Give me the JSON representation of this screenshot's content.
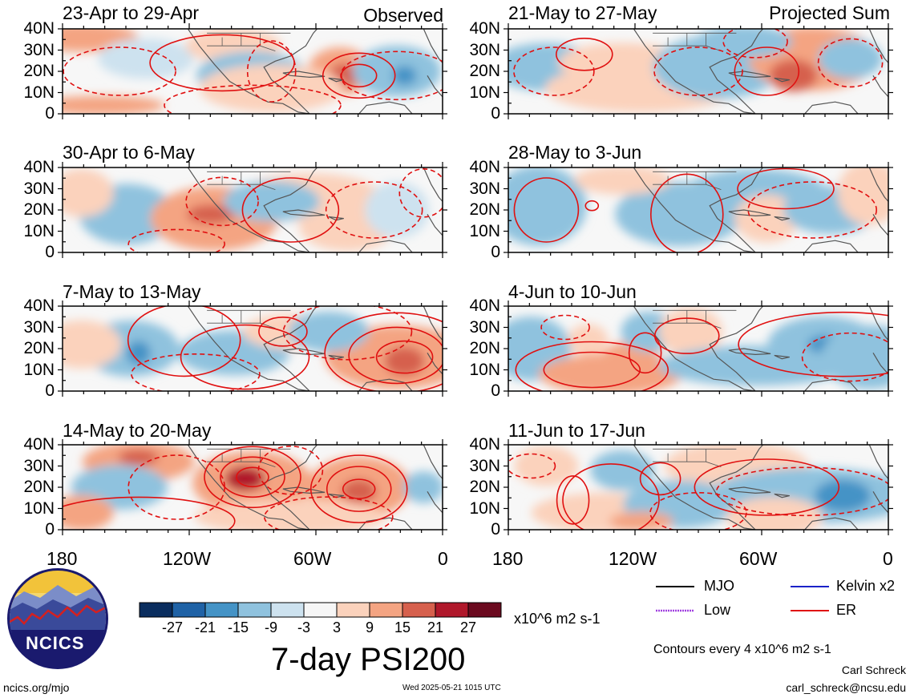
{
  "panels_observed": [
    {
      "title": "23-Apr to 29-Apr"
    },
    {
      "title": "30-Apr to 6-May"
    },
    {
      "title": "7-May to 13-May"
    },
    {
      "title": "14-May to 20-May"
    }
  ],
  "panels_projected": [
    {
      "title": "21-May to 27-May"
    },
    {
      "title": "28-May to 3-Jun"
    },
    {
      "title": "4-Jun to 10-Jun"
    },
    {
      "title": "11-Jun to 17-Jun"
    }
  ],
  "column_tags": {
    "left": "Observed",
    "right": "Projected Sum"
  },
  "lat_labels": [
    "40N",
    "30N",
    "20N",
    "10N",
    "0"
  ],
  "lon_labels": [
    "180",
    "120W",
    "60W",
    "0"
  ],
  "colorbar": {
    "ticks": [
      "-27",
      "-21",
      "-15",
      "-9",
      "-3",
      "3",
      "9",
      "15",
      "21",
      "27"
    ],
    "colors": [
      "#0a2d5e",
      "#1f62a6",
      "#4493c6",
      "#8fc2de",
      "#cde2ef",
      "#f6f6f6",
      "#fbd2bc",
      "#f4a482",
      "#d6604d",
      "#b0182b",
      "#6b0a1f"
    ],
    "units": "x10^6 m2 s-1"
  },
  "main_title": "7-day PSI200",
  "legend": {
    "mjo": "MJO",
    "kelvin": "Kelvin x2",
    "low": "Low",
    "er": "ER",
    "contours": "Contours every 4 x10^6 m2 s-1",
    "colors": {
      "mjo": "#000000",
      "kelvin": "#1a22c8",
      "low": "#a040e0",
      "er": "#e01010"
    }
  },
  "logo": {
    "text": "NCICS"
  },
  "footer": {
    "left": "ncics.org/mjo",
    "center": "Wed 2025-05-21 1015 UTC",
    "author": "Carl Schreck",
    "email": "carl_schreck@ncsu.edu"
  }
}
